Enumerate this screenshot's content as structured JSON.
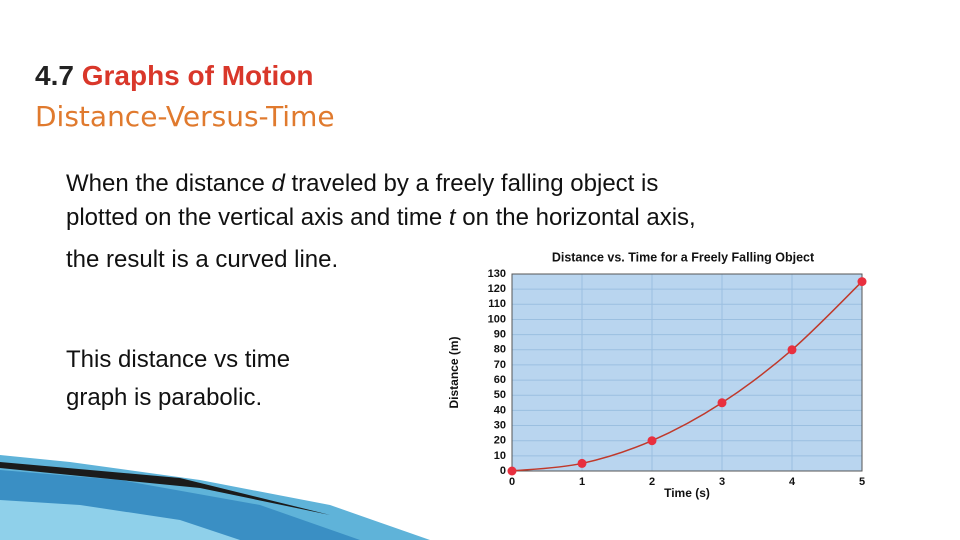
{
  "header": {
    "number": "4.7",
    "title": "Graphs of Motion",
    "subtitle": "Distance-Versus-Time"
  },
  "body": {
    "paragraph_1": [
      [
        {
          "text": "When the distance "
        },
        {
          "text": "d",
          "italic": true
        },
        {
          "text": " traveled by a freely falling object is"
        }
      ],
      [
        {
          "text": "plotted on the vertical axis and time "
        },
        {
          "text": "t",
          "italic": true
        },
        {
          "text": " on the horizontal axis,"
        }
      ],
      [
        {
          "text": "the result is a curved line."
        }
      ]
    ],
    "paragraph_2": [
      "This distance vs time",
      "graph is parabolic."
    ]
  },
  "chart_data": {
    "type": "line",
    "title": "Distance vs. Time for a Freely Falling Object",
    "x_label": "Time (s)",
    "y_label": "Distance (m)",
    "x": [
      0,
      1,
      2,
      3,
      4,
      5
    ],
    "values": [
      0,
      5,
      20,
      45,
      80,
      125
    ],
    "color": "#c0392b",
    "marker_color": "#e8303f",
    "background": "#b9d5ef",
    "xlim": [
      0,
      5
    ],
    "xticks": [
      0,
      1,
      2,
      3,
      4,
      5
    ],
    "ylim": [
      0,
      130
    ],
    "yticks": [
      0,
      10,
      20,
      30,
      40,
      50,
      60,
      70,
      80,
      90,
      100,
      110,
      120,
      130
    ],
    "grid": true
  }
}
